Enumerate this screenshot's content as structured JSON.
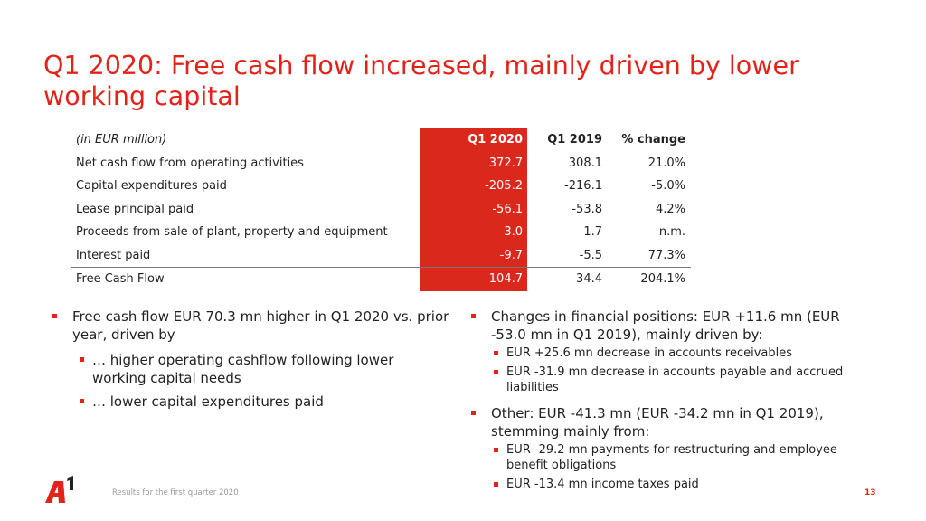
{
  "title": "Q1 2020: Free cash flow increased, mainly driven by lower working capital",
  "table": {
    "headers": [
      "(in EUR million)",
      "Q1 2020",
      "Q1 2019",
      "% change"
    ],
    "rows": [
      [
        "Net cash flow from operating activities",
        "372.7",
        "308.1",
        "21.0%"
      ],
      [
        "Capital expenditures paid",
        "-205.2",
        "-216.1",
        "-5.0%"
      ],
      [
        "Lease principal paid",
        "-56.1",
        "-53.8",
        "4.2%"
      ],
      [
        "Proceeds from sale of plant, property and equipment",
        "3.0",
        "1.7",
        "n.m."
      ],
      [
        "Interest paid",
        "-9.7",
        "-5.5",
        "77.3%"
      ]
    ],
    "total": [
      "Free Cash Flow",
      "104.7",
      "34.4",
      "204.1%"
    ]
  },
  "left": {
    "bullet": "Free cash flow EUR 70.3 mn higher in Q1 2020 vs. prior year, driven by",
    "subs": [
      "… higher operating cashflow following lower working capital needs",
      "… lower capital expenditures paid"
    ]
  },
  "right": {
    "b1": "Changes in financial positions: EUR +11.6 mn (EUR -53.0 mn in Q1 2019), mainly driven by:",
    "b1_subs": [
      "EUR +25.6 mn decrease in accounts receivables",
      "EUR -31.9 mn decrease in accounts payable and accrued liabilities"
    ],
    "b2": "Other: EUR -41.3 mn (EUR -34.2 mn in Q1 2019), stemming mainly from:",
    "b2_subs": [
      "EUR -29.2 mn payments for restructuring and employee benefit obligations",
      "EUR -13.4 mn income taxes paid"
    ]
  },
  "footer": "Results for the first quarter 2020",
  "page_number": "13",
  "logo": "A1",
  "colors": {
    "accent": "#e2231a",
    "highlight_column": "#da291c"
  }
}
